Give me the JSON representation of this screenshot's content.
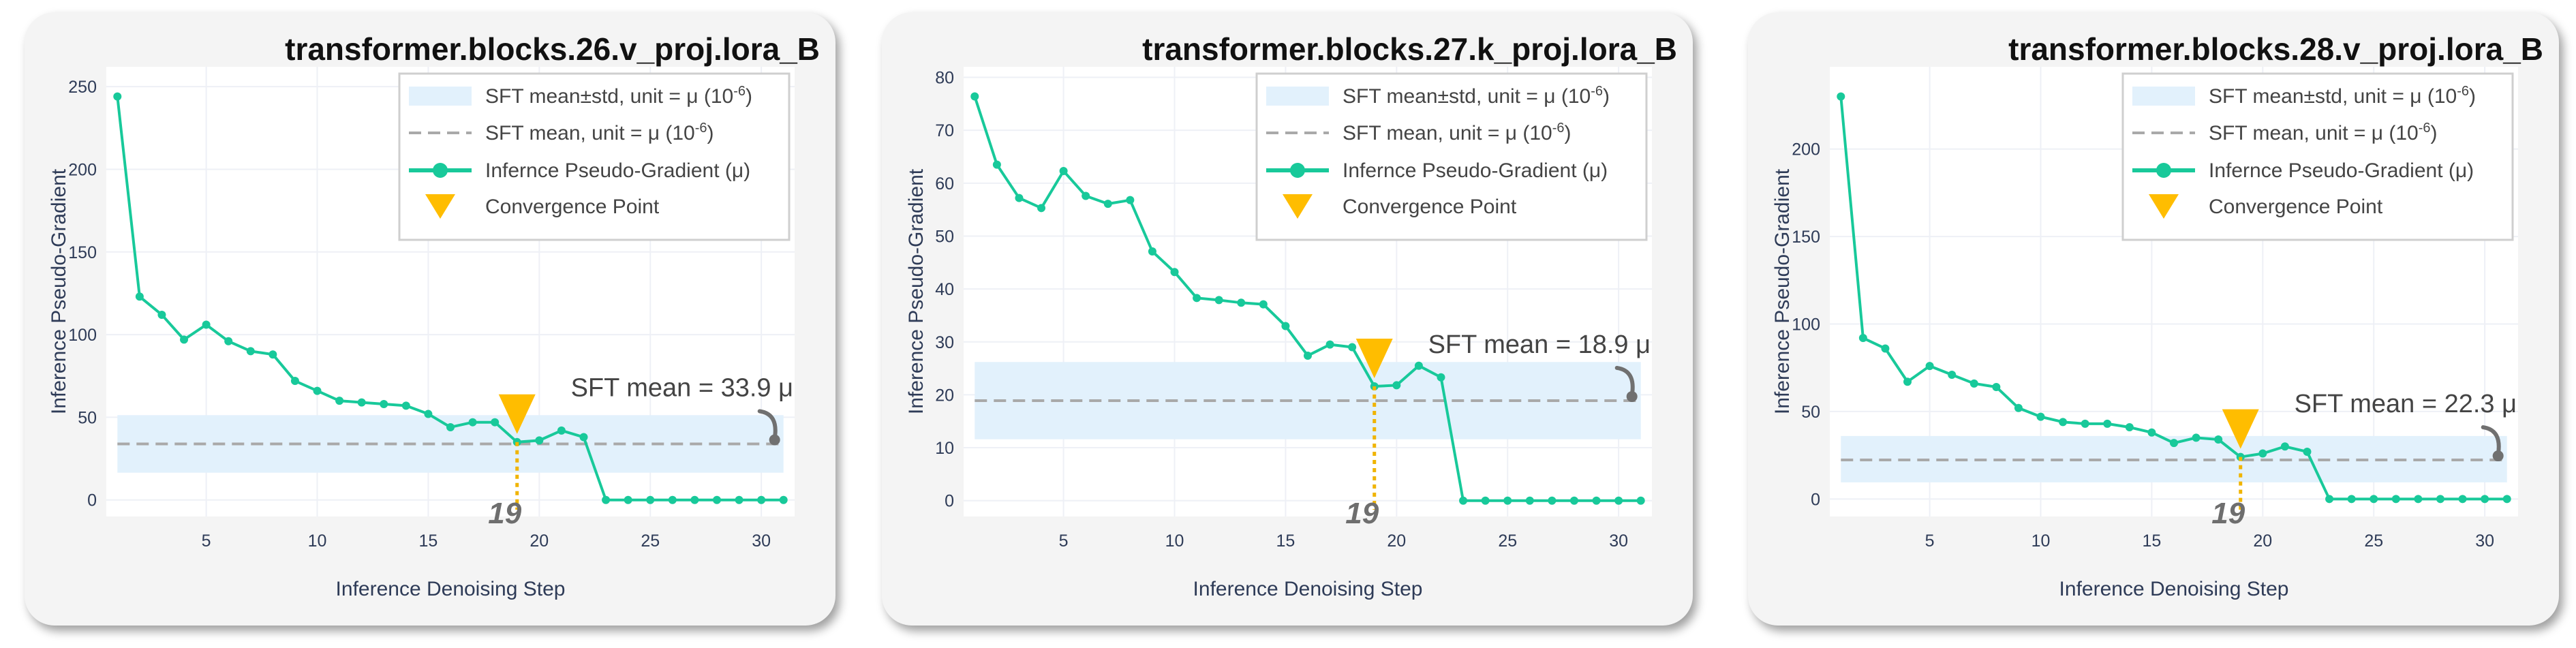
{
  "panels": [
    {
      "title": "transformer.blocks.26.v_proj.lora_B",
      "chart_data": {
        "type": "line",
        "xlabel": "Inference Denoising Step",
        "ylabel": "Inference Pseudo-Gradient",
        "xticks": [
          5,
          10,
          15,
          20,
          25,
          30
        ],
        "yticks": [
          0,
          50,
          100,
          150,
          200,
          250
        ],
        "xlim": [
          0.5,
          31.5
        ],
        "ylim": [
          -10,
          262
        ],
        "sft_mean": 33.9,
        "sft_band": [
          16.5,
          51.3
        ],
        "annotation": "SFT mean = 33.9 μ",
        "convergence_step": 19,
        "convergence_label": "19",
        "x": [
          1,
          2,
          3,
          4,
          5,
          6,
          7,
          8,
          9,
          10,
          11,
          12,
          13,
          14,
          15,
          16,
          17,
          18,
          19,
          20,
          21,
          22,
          23,
          24,
          25,
          26,
          27,
          28,
          29,
          30,
          31
        ],
        "values": [
          244,
          123,
          112,
          97,
          106,
          96,
          90,
          88,
          72,
          66,
          60,
          59,
          58,
          57,
          52,
          44,
          47,
          47,
          35,
          36,
          42,
          38,
          0,
          0,
          0,
          0,
          0,
          0,
          0,
          0,
          0
        ]
      }
    },
    {
      "title": "transformer.blocks.27.k_proj.lora_B",
      "chart_data": {
        "type": "line",
        "xlabel": "Inference Denoising Step",
        "ylabel": "Inference Pseudo-Gradient",
        "xticks": [
          5,
          10,
          15,
          20,
          25,
          30
        ],
        "yticks": [
          0,
          10,
          20,
          30,
          40,
          50,
          60,
          70,
          80
        ],
        "xlim": [
          0.5,
          31.5
        ],
        "ylim": [
          -3,
          82
        ],
        "sft_mean": 18.9,
        "sft_band": [
          11.6,
          26.2
        ],
        "annotation": "SFT mean = 18.9 μ",
        "convergence_step": 19,
        "convergence_label": "19",
        "x": [
          1,
          2,
          3,
          4,
          5,
          6,
          7,
          8,
          9,
          10,
          11,
          12,
          13,
          14,
          15,
          16,
          17,
          18,
          19,
          20,
          21,
          22,
          23,
          24,
          25,
          26,
          27,
          28,
          29,
          30,
          31
        ],
        "values": [
          76.4,
          63.5,
          57.2,
          55.3,
          62.3,
          57.6,
          56.1,
          56.8,
          47.1,
          43.2,
          38.3,
          37.9,
          37.4,
          37.1,
          33.0,
          27.4,
          29.5,
          29.0,
          21.6,
          21.8,
          25.5,
          23.3,
          0,
          0,
          0,
          0,
          0,
          0,
          0,
          0,
          0
        ]
      }
    },
    {
      "title": "transformer.blocks.28.v_proj.lora_B",
      "chart_data": {
        "type": "line",
        "xlabel": "Inference Denoising Step",
        "ylabel": "Inference Pseudo-Gradient",
        "xticks": [
          5,
          10,
          15,
          20,
          25,
          30
        ],
        "yticks": [
          0,
          50,
          100,
          150,
          200
        ],
        "xlim": [
          0.5,
          31.5
        ],
        "ylim": [
          -10,
          247
        ],
        "sft_mean": 22.3,
        "sft_band": [
          9.5,
          36.0
        ],
        "annotation": "SFT mean = 22.3 μ",
        "convergence_step": 19,
        "convergence_label": "19",
        "x": [
          1,
          2,
          3,
          4,
          5,
          6,
          7,
          8,
          9,
          10,
          11,
          12,
          13,
          14,
          15,
          16,
          17,
          18,
          19,
          20,
          21,
          22,
          23,
          24,
          25,
          26,
          27,
          28,
          29,
          30,
          31
        ],
        "values": [
          230,
          92,
          86,
          67,
          76,
          71,
          66,
          64,
          52,
          47,
          44,
          43,
          43,
          41,
          38,
          32,
          35,
          34,
          24,
          26,
          30,
          27,
          0,
          0,
          0,
          0,
          0,
          0,
          0,
          0,
          0
        ]
      }
    }
  ],
  "legend": {
    "band_label": "SFT mean±std, unit = μ (10",
    "mean_label": "SFT mean, unit = μ (10",
    "unit_exponent": "-6",
    "unit_close": ")",
    "line_label": "Infernce Pseudo-Gradient (μ)",
    "convergence_label": "Convergence Point"
  },
  "colors": {
    "line": "#18c99a",
    "band": "#e2f1fc",
    "mean": "#a9a9a9",
    "marker": "#ffbd00",
    "convergence_line": "#f0b400",
    "arrow": "#707070",
    "axis_text": "#2e3b57",
    "grid": "#eef0f6"
  }
}
